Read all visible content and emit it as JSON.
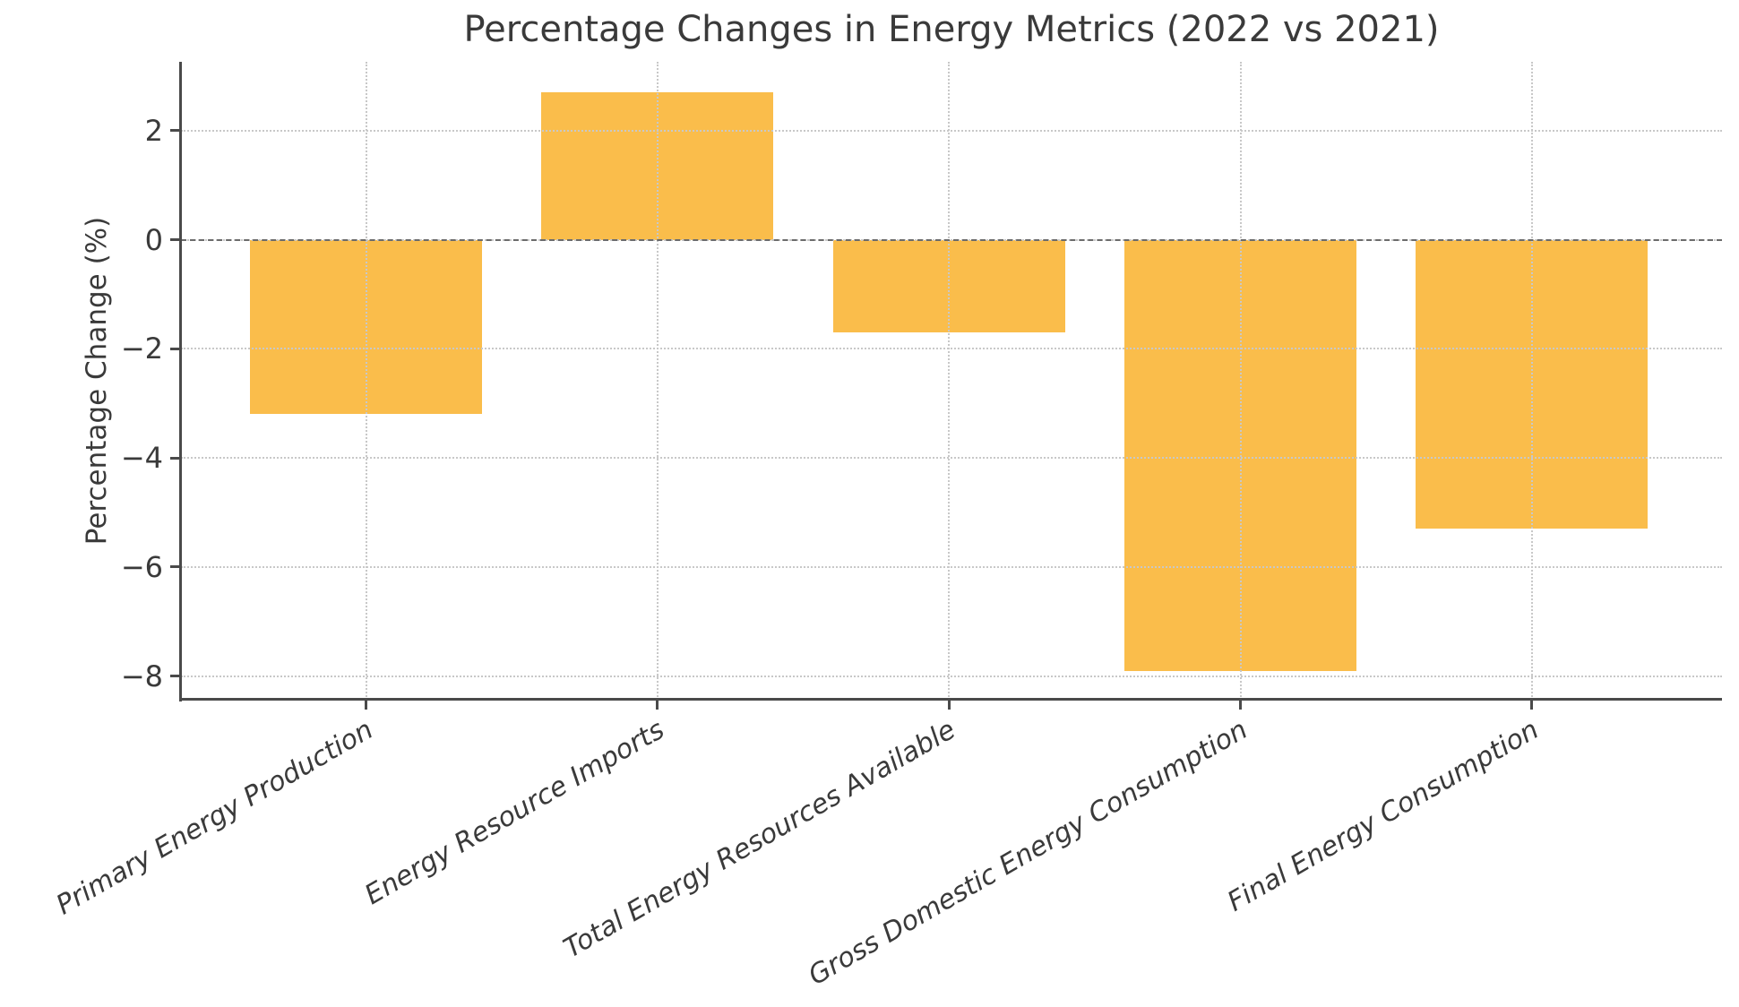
{
  "chart_data": {
    "type": "bar",
    "title": "Percentage Changes in Energy Metrics (2022 vs 2021)",
    "xlabel": "",
    "ylabel": "Percentage Change (%)",
    "categories": [
      "Primary Energy Production",
      "Energy Resource Imports",
      "Total Energy Resources Available",
      "Gross Domestic Energy Consumption",
      "Final Energy Consumption"
    ],
    "values": [
      -3.2,
      2.7,
      -1.7,
      -7.9,
      -5.3
    ],
    "ytick_values": [
      2,
      0,
      -2,
      -4,
      -6,
      -8
    ],
    "ytick_labels": [
      "2",
      "0",
      "−2",
      "−4",
      "−6",
      "−8"
    ],
    "ylim": [
      -8.43,
      3.26
    ],
    "bar_color": "#fabd4b",
    "background_color": "#ffffff",
    "grid": "dotted, light gray, horizontal and vertical, drawn over bars",
    "zero_line": "dashed dark gray at y=0",
    "legend": null
  }
}
